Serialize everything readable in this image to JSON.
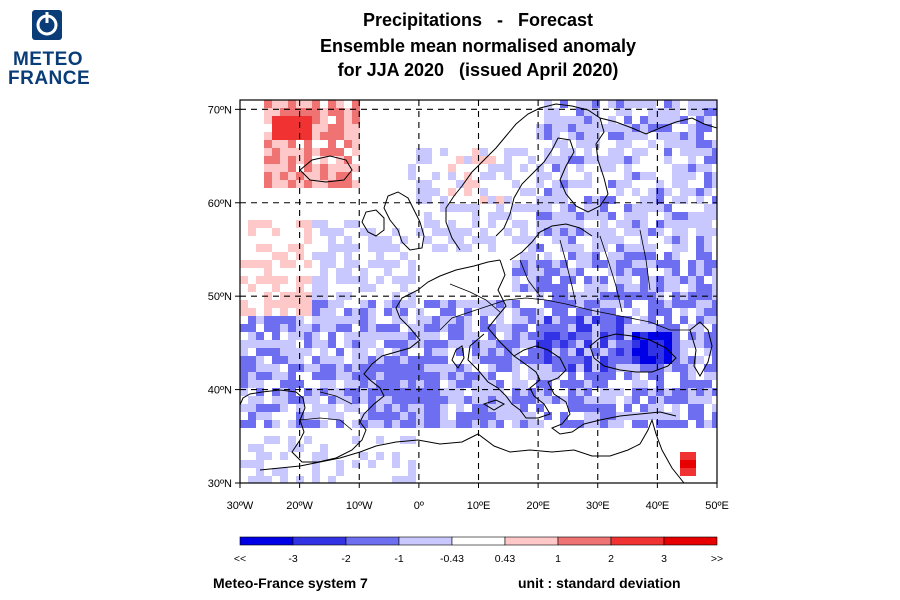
{
  "title": {
    "line1": "Precipitations   -   Forecast",
    "line2": "Ensemble mean normalised anomaly",
    "line3": "for JJA 2020   (issued April 2020)"
  },
  "logo": {
    "line1": "METEO",
    "line2": "FRANCE",
    "icon": "meteo-france-logo-icon",
    "color": "#0a3c78"
  },
  "map": {
    "lon_range": [
      -30,
      50
    ],
    "lat_range": [
      30,
      71
    ],
    "grid_lons": [
      -20,
      -10,
      0,
      10,
      20,
      30,
      40
    ],
    "grid_lats": [
      40,
      50,
      60,
      70
    ],
    "lon_ticks": [
      "30ºW",
      "20ºW",
      "10ºW",
      "0º",
      "10ºE",
      "20ºE",
      "30ºE",
      "40ºE",
      "50ºE"
    ],
    "lat_ticks": [
      "30ºN",
      "40ºN",
      "50ºN",
      "60ºN",
      "70ºN"
    ],
    "grid": true,
    "grid_style": "dashed"
  },
  "colorbar": {
    "labels": [
      "<<",
      "-3",
      "-2",
      "-1",
      "-0.43",
      "0.43",
      "1",
      "2",
      "3",
      ">>"
    ],
    "colors": [
      "#0000e6",
      "#3333e6",
      "#6e6ef0",
      "#c8c8ff",
      "#ffffff",
      "#ffc8c8",
      "#f07373",
      "#f03232",
      "#e60000"
    ]
  },
  "footer": {
    "system": "Meteo-France system 7",
    "unit": "unit : standard deviation"
  },
  "anomaly_regions": [
    {
      "name": "north-atlantic-positive",
      "level": "0.43 to 2",
      "lon": [
        -25,
        -10
      ],
      "lat": [
        62,
        71
      ]
    },
    {
      "name": "iberia-negative",
      "level": "-1 to -2",
      "lon": [
        -10,
        3
      ],
      "lat": [
        36,
        44
      ]
    },
    {
      "name": "balkans-negative",
      "level": "-2 to -3",
      "lon": [
        15,
        30
      ],
      "lat": [
        40,
        47
      ]
    },
    {
      "name": "black-sea-strong-negative",
      "level": "-3 and below",
      "lon": [
        36,
        42
      ],
      "lat": [
        43,
        46
      ]
    },
    {
      "name": "middle-east-strong-positive",
      "level": "3 and above",
      "lon": [
        44,
        46
      ],
      "lat": [
        31,
        33
      ]
    }
  ]
}
